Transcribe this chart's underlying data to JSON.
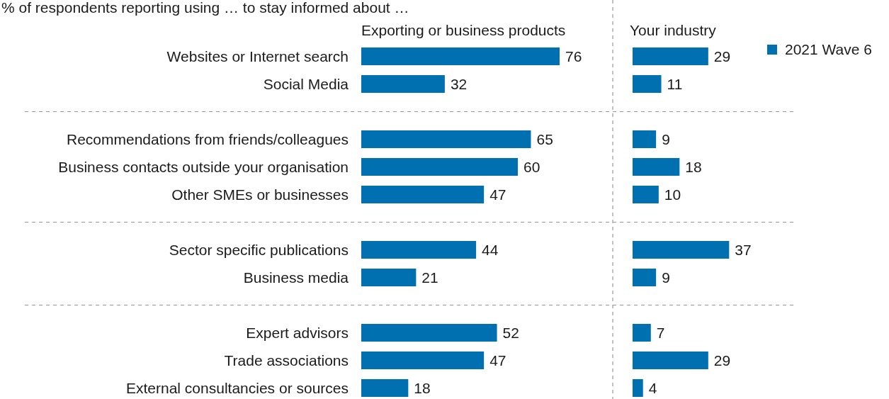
{
  "chart_data": [
    {
      "type": "bar",
      "orientation": "horizontal",
      "title": "% of respondents reporting using … to stay informed about …",
      "subtitle": "Exporting or business products",
      "data_labels": true,
      "categories": [
        "Websites or Internet search",
        "Social Media",
        null,
        "Recommendations from friends/colleagues",
        "Business contacts outside your organisation",
        "Other SMEs or businesses",
        null,
        "Sector specific publications",
        "Business media",
        null,
        "Expert advisors",
        "Trade associations",
        "External consultancies or sources"
      ],
      "series": [
        {
          "color": "#0070b0",
          "values": [
            76,
            32,
            null,
            65,
            60,
            47,
            null,
            44,
            21,
            null,
            52,
            47,
            18
          ]
        }
      ]
    },
    {
      "type": "bar",
      "orientation": "horizontal",
      "subtitle": "Your industry",
      "data_labels": true,
      "legend": "right",
      "categories": [
        null,
        null,
        null,
        null,
        null,
        null,
        null,
        null,
        null,
        null,
        null,
        null,
        null
      ],
      "series": [
        {
          "name": "2021 Wave 6",
          "color": "#0070b0",
          "values": [
            29,
            11,
            null,
            9,
            18,
            10,
            null,
            37,
            9,
            null,
            7,
            29,
            4
          ]
        }
      ]
    }
  ]
}
